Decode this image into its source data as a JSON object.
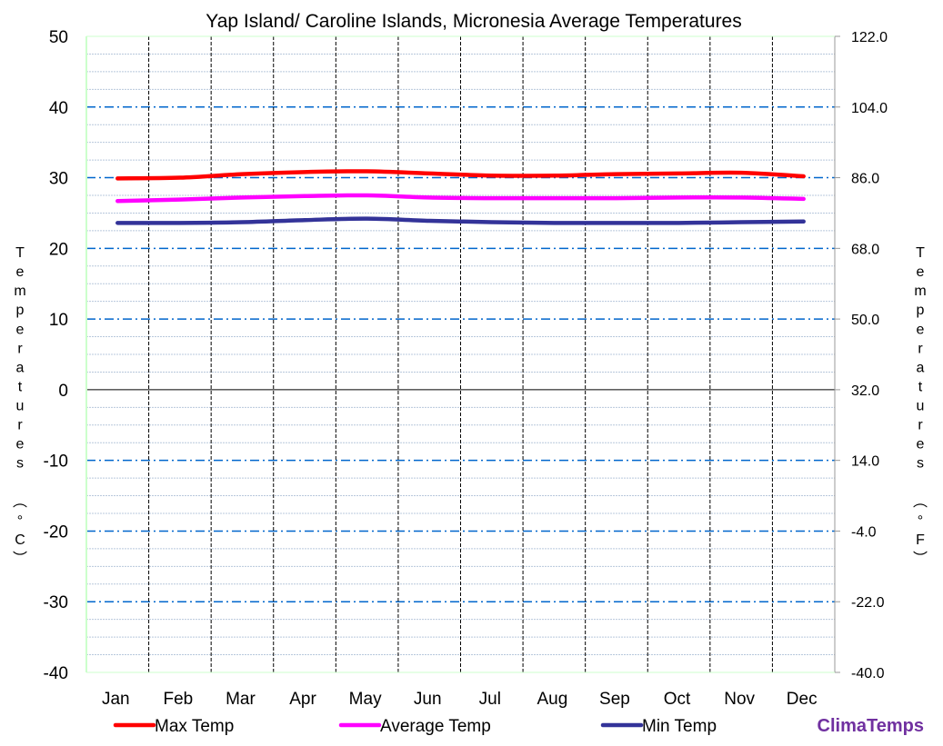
{
  "chart_data": {
    "type": "line",
    "title": "Yap Island/ Caroline Islands, Micronesia Average Temperatures",
    "ylabel": "Temperatures (°C)",
    "ylabel_right": "Temperatures (°F)",
    "ylim": [
      -40,
      50
    ],
    "ylim_right": [
      -40.0,
      122.0
    ],
    "yticks": [
      "50",
      "40",
      "30",
      "20",
      "10",
      "0",
      "-10",
      "-20",
      "-30",
      "-40"
    ],
    "yticks_right": [
      "122.0",
      "104.0",
      "86.0",
      "68.0",
      "50.0",
      "32.0",
      "14.0",
      "-4.0",
      "-22.0",
      "-40.0"
    ],
    "categories": [
      "Jan",
      "Feb",
      "Mar",
      "Apr",
      "May",
      "Jun",
      "Jul",
      "Aug",
      "Sep",
      "Oct",
      "Nov",
      "Dec"
    ],
    "grid": true,
    "legend_placement": "bottom",
    "series": [
      {
        "name": "Max Temp",
        "color": "#ff0000",
        "values": [
          29.9,
          30.0,
          30.5,
          30.8,
          30.9,
          30.6,
          30.3,
          30.3,
          30.5,
          30.6,
          30.7,
          30.2
        ]
      },
      {
        "name": "Average Temp",
        "color": "#ff00ff",
        "values": [
          26.7,
          26.9,
          27.2,
          27.4,
          27.5,
          27.2,
          27.1,
          27.1,
          27.1,
          27.2,
          27.2,
          27.0
        ]
      },
      {
        "name": "Min Temp",
        "color": "#333399",
        "values": [
          23.6,
          23.6,
          23.7,
          24.0,
          24.2,
          23.9,
          23.7,
          23.6,
          23.6,
          23.6,
          23.7,
          23.8
        ]
      }
    ],
    "watermark": "ClimaTemps",
    "watermark_color": "#7030a0"
  }
}
